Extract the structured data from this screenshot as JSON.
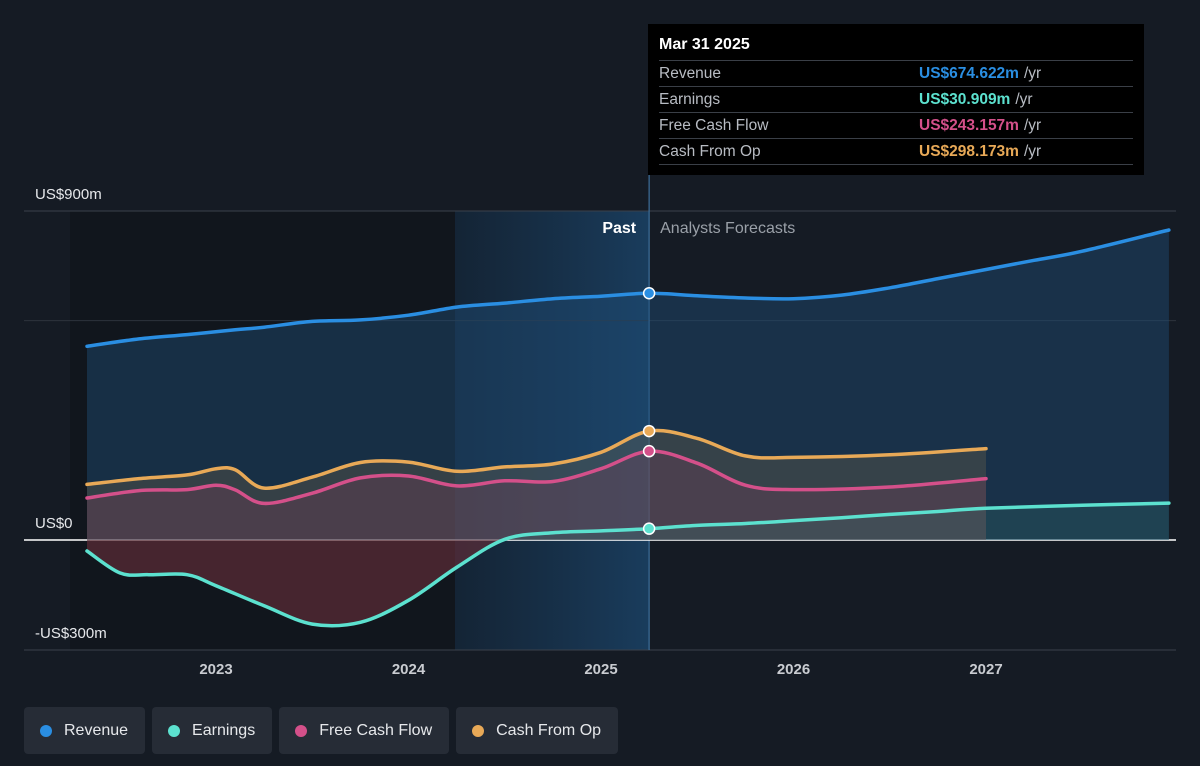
{
  "chart_data": {
    "type": "area",
    "y_axis": {
      "labels": [
        "US$900m",
        "US$0",
        "-US$300m"
      ],
      "ylim": [
        -300,
        900
      ],
      "unit": "US$m"
    },
    "x_axis": {
      "ticks": [
        "2023",
        "2024",
        "2025",
        "2026",
        "2027"
      ],
      "xlim": [
        2022.2,
        2027.95
      ]
    },
    "period_labels": {
      "past": "Past",
      "forecast": "Analysts Forecasts"
    },
    "divider_x": 2025.25,
    "tooltip": {
      "date": "Mar 31 2025",
      "unit": "/yr",
      "rows": [
        {
          "label": "Revenue",
          "value": "US$674.622m",
          "color": "#2a8ee2"
        },
        {
          "label": "Earnings",
          "value": "US$30.909m",
          "color": "#5ce1cf"
        },
        {
          "label": "Free Cash Flow",
          "value": "US$243.157m",
          "color": "#d4508a"
        },
        {
          "label": "Cash From Op",
          "value": "US$298.173m",
          "color": "#e8a957"
        }
      ]
    },
    "series": [
      {
        "name": "Revenue",
        "color": "#2a8ee2",
        "x": [
          2022.33,
          2022.6,
          2022.85,
          2023.1,
          2023.25,
          2023.5,
          2023.75,
          2024.0,
          2024.25,
          2024.5,
          2024.75,
          2025.0,
          2025.25,
          2025.5,
          2025.75,
          2026.0,
          2026.25,
          2026.5,
          2026.75,
          2027.0,
          2027.25,
          2027.5,
          2027.95
        ],
        "values": [
          530,
          550,
          562,
          575,
          582,
          598,
          602,
          615,
          637,
          648,
          660,
          667,
          675,
          668,
          662,
          660,
          670,
          690,
          715,
          740,
          765,
          790,
          848
        ]
      },
      {
        "name": "Cash From Op",
        "color": "#e8a957",
        "x": [
          2022.33,
          2022.6,
          2022.85,
          2023.0,
          2023.1,
          2023.25,
          2023.5,
          2023.75,
          2024.0,
          2024.25,
          2024.5,
          2024.75,
          2025.0,
          2025.25,
          2025.5,
          2025.75,
          2026.0,
          2026.5,
          2027.0
        ],
        "values": [
          152,
          168,
          178,
          195,
          192,
          142,
          172,
          212,
          213,
          188,
          200,
          208,
          240,
          298,
          278,
          230,
          226,
          233,
          250
        ]
      },
      {
        "name": "Free Cash Flow",
        "color": "#d4508a",
        "x": [
          2022.33,
          2022.6,
          2022.85,
          2023.0,
          2023.1,
          2023.25,
          2023.5,
          2023.75,
          2024.0,
          2024.25,
          2024.5,
          2024.75,
          2025.0,
          2025.25,
          2025.5,
          2025.75,
          2026.0,
          2026.5,
          2027.0
        ],
        "values": [
          115,
          135,
          138,
          150,
          137,
          100,
          128,
          170,
          175,
          148,
          162,
          160,
          195,
          243,
          210,
          150,
          138,
          145,
          168
        ]
      },
      {
        "name": "Earnings",
        "color": "#5ce1cf",
        "x": [
          2022.33,
          2022.5,
          2022.65,
          2022.85,
          2023.0,
          2023.25,
          2023.5,
          2023.75,
          2024.0,
          2024.25,
          2024.5,
          2024.75,
          2025.0,
          2025.25,
          2025.5,
          2025.75,
          2026.0,
          2026.25,
          2026.5,
          2026.75,
          2027.0,
          2027.5,
          2027.95
        ],
        "values": [
          -30,
          -90,
          -95,
          -95,
          -125,
          -180,
          -230,
          -225,
          -165,
          -75,
          2,
          20,
          25,
          31,
          40,
          45,
          53,
          61,
          70,
          78,
          87,
          95,
          101
        ]
      }
    ]
  },
  "legend": [
    {
      "label": "Revenue",
      "color": "#2a8ee2"
    },
    {
      "label": "Earnings",
      "color": "#5ce1cf"
    },
    {
      "label": "Free Cash Flow",
      "color": "#d4508a"
    },
    {
      "label": "Cash From Op",
      "color": "#e8a957"
    }
  ]
}
